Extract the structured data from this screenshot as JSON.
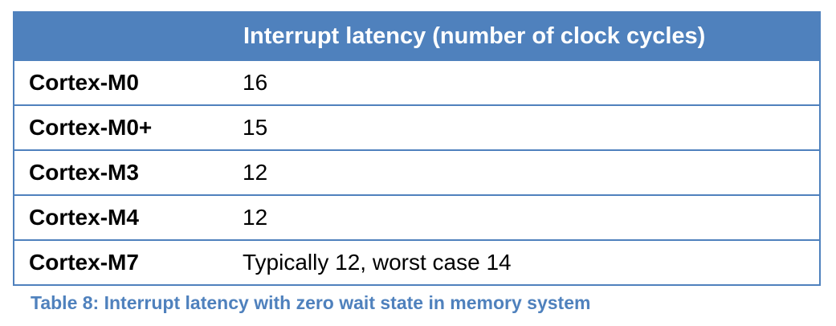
{
  "table": {
    "headers": [
      "",
      "Interrupt latency (number of clock cycles)"
    ],
    "rows": [
      {
        "processor": "Cortex-M0",
        "latency": "16"
      },
      {
        "processor": "Cortex-M0+",
        "latency": "15"
      },
      {
        "processor": "Cortex-M3",
        "latency": "12"
      },
      {
        "processor": "Cortex-M4",
        "latency": "12"
      },
      {
        "processor": "Cortex-M7",
        "latency": "Typically 12, worst case 14"
      }
    ],
    "header_color": "#4f81bd",
    "border_color": "#4f81bd"
  },
  "caption": "Table 8: Interrupt latency with zero wait state in memory system",
  "caption_color": "#4f81bd"
}
